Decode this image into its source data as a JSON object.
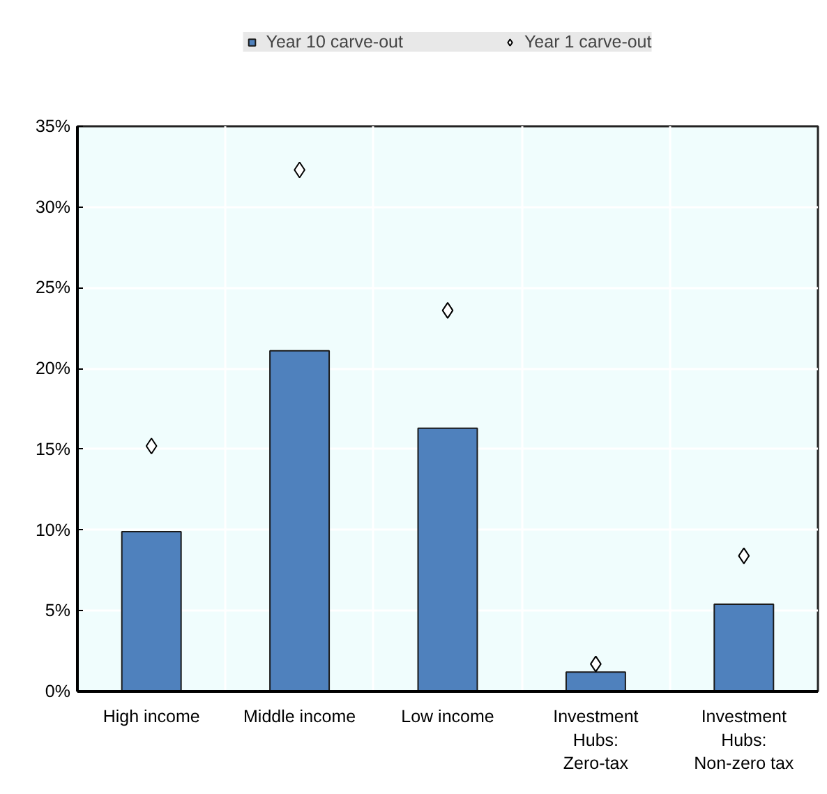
{
  "chart_data": {
    "type": "bar",
    "categories": [
      "High income",
      "Middle income",
      "Low income",
      "Investment\nHubs:\nZero-tax",
      "Investment\nHubs:\nNon-zero tax"
    ],
    "series": [
      {
        "name": "Year 10 carve-out",
        "color": "#4f81bd",
        "values": [
          9.9,
          21.1,
          16.3,
          1.2,
          5.4
        ]
      },
      {
        "name": "Year 1 carve-out",
        "type": "scatter",
        "marker": "diamond",
        "color": "#ffffff",
        "values": [
          15.2,
          32.3,
          23.6,
          1.7,
          8.4
        ]
      }
    ],
    "ylim": [
      0,
      35
    ],
    "yticks": [
      {
        "value": 0,
        "label": "0%"
      },
      {
        "value": 5,
        "label": "5%"
      },
      {
        "value": 10,
        "label": "10%"
      },
      {
        "value": 15,
        "label": "15%"
      },
      {
        "value": 20,
        "label": "20%"
      },
      {
        "value": 25,
        "label": "25%"
      },
      {
        "value": 30,
        "label": "30%"
      },
      {
        "value": 35,
        "label": "35%"
      }
    ],
    "grid": true,
    "legend": "top"
  }
}
